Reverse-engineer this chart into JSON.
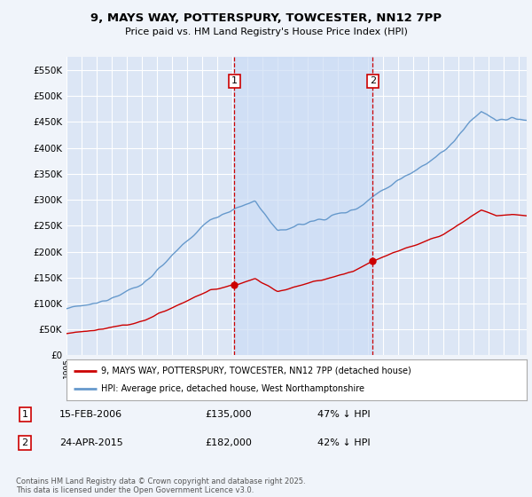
{
  "title_line1": "9, MAYS WAY, POTTERSPURY, TOWCESTER, NN12 7PP",
  "title_line2": "Price paid vs. HM Land Registry's House Price Index (HPI)",
  "bg_color": "#f0f4fa",
  "plot_bg_color": "#dce6f5",
  "shade_color": "#ccddf5",
  "grid_color": "#ffffff",
  "red_line_color": "#cc0000",
  "blue_line_color": "#6699cc",
  "sale1_t": 2006.125,
  "sale2_t": 2015.3,
  "sale1_price": 135000,
  "sale2_price": 182000,
  "legend_label1": "9, MAYS WAY, POTTERSPURY, TOWCESTER, NN12 7PP (detached house)",
  "legend_label2": "HPI: Average price, detached house, West Northamptonshire",
  "footnote": "Contains HM Land Registry data © Crown copyright and database right 2025.\nThis data is licensed under the Open Government Licence v3.0.",
  "table_row1": [
    "1",
    "15-FEB-2006",
    "£135,000",
    "47% ↓ HPI"
  ],
  "table_row2": [
    "2",
    "24-APR-2015",
    "£182,000",
    "42% ↓ HPI"
  ],
  "ylim": [
    0,
    575000
  ],
  "yticks": [
    0,
    50000,
    100000,
    150000,
    200000,
    250000,
    300000,
    350000,
    400000,
    450000,
    500000,
    550000
  ],
  "x_start_year": 1995,
  "x_end_year": 2025
}
